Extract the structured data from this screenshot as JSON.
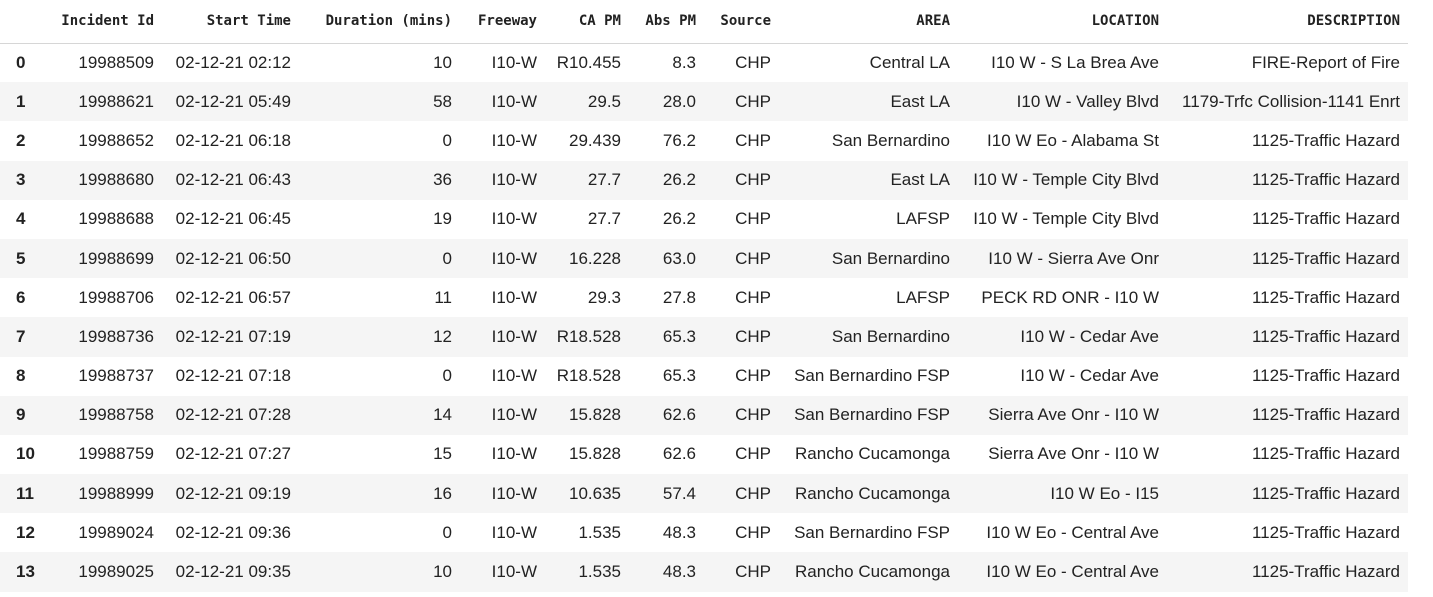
{
  "table": {
    "columns": [
      "",
      "Incident Id",
      "Start Time",
      "Duration (mins)",
      "Freeway",
      "CA PM",
      "Abs PM",
      "Source",
      "AREA",
      "LOCATION",
      "DESCRIPTION"
    ],
    "rows": [
      [
        "0",
        "19988509",
        "02-12-21 02:12",
        "10",
        "I10-W",
        "R10.455",
        "8.3",
        "CHP",
        "Central LA",
        "I10 W - S La Brea Ave",
        "FIRE-Report of Fire"
      ],
      [
        "1",
        "19988621",
        "02-12-21 05:49",
        "58",
        "I10-W",
        "29.5",
        "28.0",
        "CHP",
        "East LA",
        "I10 W - Valley Blvd",
        "1179-Trfc Collision-1141 Enrt"
      ],
      [
        "2",
        "19988652",
        "02-12-21 06:18",
        "0",
        "I10-W",
        "29.439",
        "76.2",
        "CHP",
        "San Bernardino",
        "I10 W Eo - Alabama St",
        "1125-Traffic Hazard"
      ],
      [
        "3",
        "19988680",
        "02-12-21 06:43",
        "36",
        "I10-W",
        "27.7",
        "26.2",
        "CHP",
        "East LA",
        "I10 W - Temple City Blvd",
        "1125-Traffic Hazard"
      ],
      [
        "4",
        "19988688",
        "02-12-21 06:45",
        "19",
        "I10-W",
        "27.7",
        "26.2",
        "CHP",
        "LAFSP",
        "I10 W - Temple City Blvd",
        "1125-Traffic Hazard"
      ],
      [
        "5",
        "19988699",
        "02-12-21 06:50",
        "0",
        "I10-W",
        "16.228",
        "63.0",
        "CHP",
        "San Bernardino",
        "I10 W - Sierra Ave Onr",
        "1125-Traffic Hazard"
      ],
      [
        "6",
        "19988706",
        "02-12-21 06:57",
        "11",
        "I10-W",
        "29.3",
        "27.8",
        "CHP",
        "LAFSP",
        "PECK RD ONR - I10 W",
        "1125-Traffic Hazard"
      ],
      [
        "7",
        "19988736",
        "02-12-21 07:19",
        "12",
        "I10-W",
        "R18.528",
        "65.3",
        "CHP",
        "San Bernardino",
        "I10 W - Cedar Ave",
        "1125-Traffic Hazard"
      ],
      [
        "8",
        "19988737",
        "02-12-21 07:18",
        "0",
        "I10-W",
        "R18.528",
        "65.3",
        "CHP",
        "San Bernardino FSP",
        "I10 W - Cedar Ave",
        "1125-Traffic Hazard"
      ],
      [
        "9",
        "19988758",
        "02-12-21 07:28",
        "14",
        "I10-W",
        "15.828",
        "62.6",
        "CHP",
        "San Bernardino FSP",
        "Sierra Ave Onr - I10 W",
        "1125-Traffic Hazard"
      ],
      [
        "10",
        "19988759",
        "02-12-21 07:27",
        "15",
        "I10-W",
        "15.828",
        "62.6",
        "CHP",
        "Rancho Cucamonga",
        "Sierra Ave Onr - I10 W",
        "1125-Traffic Hazard"
      ],
      [
        "11",
        "19988999",
        "02-12-21 09:19",
        "16",
        "I10-W",
        "10.635",
        "57.4",
        "CHP",
        "Rancho Cucamonga",
        "I10 W Eo - I15",
        "1125-Traffic Hazard"
      ],
      [
        "12",
        "19989024",
        "02-12-21 09:36",
        "0",
        "I10-W",
        "1.535",
        "48.3",
        "CHP",
        "San Bernardino FSP",
        "I10 W Eo - Central Ave",
        "1125-Traffic Hazard"
      ],
      [
        "13",
        "19989025",
        "02-12-21 09:35",
        "10",
        "I10-W",
        "1.535",
        "48.3",
        "CHP",
        "Rancho Cucamonga",
        "I10 W Eo - Central Ave",
        "1125-Traffic Hazard"
      ]
    ]
  },
  "colors": {
    "stripe": "#f5f5f5",
    "header_border": "#d6d6d6",
    "text": "#222222"
  }
}
